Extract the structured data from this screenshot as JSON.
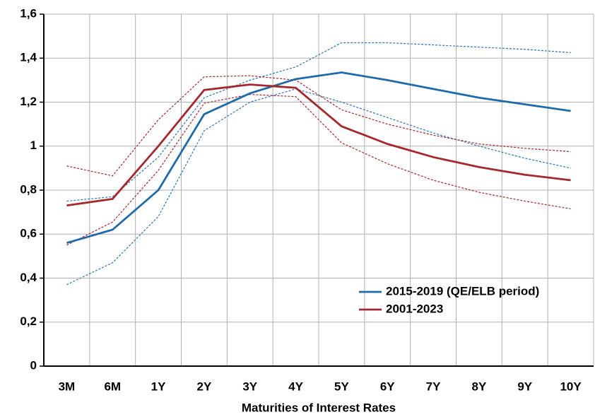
{
  "chart_data": {
    "type": "line",
    "x_label": "Maturities of Interest Rates",
    "categories": [
      "3M",
      "6M",
      "1Y",
      "2Y",
      "3Y",
      "4Y",
      "5Y",
      "6Y",
      "7Y",
      "8Y",
      "9Y",
      "10Y"
    ],
    "ylim": [
      0,
      1.6
    ],
    "yticks": [
      0,
      {
        "value": 0.2,
        "label": "0,2"
      },
      {
        "value": 0.4,
        "label": "0,4"
      },
      {
        "value": 0.6,
        "label": "0,6"
      },
      {
        "value": 0.8,
        "label": "0,8"
      },
      1,
      {
        "value": 1.2,
        "label": "1,2"
      },
      {
        "value": 1.4,
        "label": "1,4"
      },
      {
        "value": 1.6,
        "label": "1,6"
      }
    ],
    "grid": true,
    "series": [
      {
        "color": "#2e75b6",
        "dashed": true,
        "values": [
          0.75,
          0.77,
          0.95,
          1.22,
          1.3,
          1.36,
          1.47,
          1.47,
          1.46,
          1.45,
          1.44,
          1.425
        ]
      },
      {
        "color": "#2e75b6",
        "dashed": true,
        "values": [
          0.37,
          0.47,
          0.68,
          1.07,
          1.2,
          1.26,
          1.2,
          1.13,
          1.06,
          1.0,
          0.945,
          0.9
        ]
      },
      {
        "color": "#a5282d",
        "dashed": true,
        "values": [
          0.91,
          0.865,
          1.12,
          1.315,
          1.32,
          1.3,
          1.165,
          1.1,
          1.05,
          1.01,
          0.99,
          0.975
        ]
      },
      {
        "color": "#a5282d",
        "dashed": true,
        "values": [
          0.55,
          0.655,
          0.89,
          1.195,
          1.235,
          1.225,
          1.015,
          0.92,
          0.845,
          0.79,
          0.75,
          0.715
        ]
      },
      {
        "name": "2015-2019 (QE/ELB period)",
        "color": "#1f6aa8",
        "dashed": false,
        "values": [
          0.56,
          0.62,
          0.8,
          1.145,
          1.24,
          1.305,
          1.335,
          1.3,
          1.26,
          1.22,
          1.19,
          1.16
        ]
      },
      {
        "name": "2001-2023",
        "color": "#a5282d",
        "dashed": false,
        "values": [
          0.73,
          0.76,
          1.0,
          1.255,
          1.28,
          1.265,
          1.09,
          1.01,
          0.95,
          0.905,
          0.87,
          0.845
        ]
      }
    ]
  }
}
